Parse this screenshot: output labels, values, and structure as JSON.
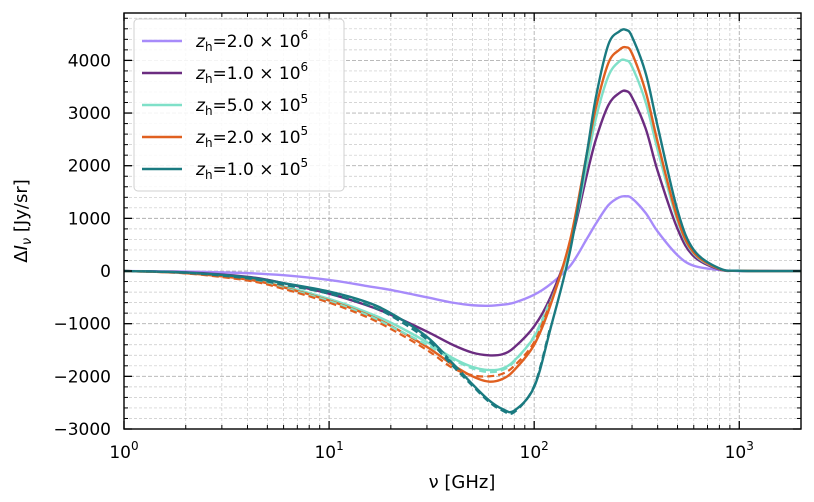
{
  "chart_data": {
    "type": "line",
    "xscale": "log",
    "xlim": [
      1,
      2000
    ],
    "ylim": [
      -3000,
      4900
    ],
    "xlabel": "ν [GHz]",
    "ylabel": "ΔI_ν [Jy/sr]",
    "grid": true,
    "legend_position": "top-left",
    "x_ticks": [
      {
        "value": 1,
        "base": "10",
        "exp": "0"
      },
      {
        "value": 10,
        "base": "10",
        "exp": "1"
      },
      {
        "value": 100,
        "base": "10",
        "exp": "2"
      },
      {
        "value": 1000,
        "base": "10",
        "exp": "3"
      }
    ],
    "y_ticks": [
      {
        "value": -3000,
        "label": "−3000"
      },
      {
        "value": -2000,
        "label": "−2000"
      },
      {
        "value": -1000,
        "label": "−1000"
      },
      {
        "value": 0,
        "label": "0"
      },
      {
        "value": 1000,
        "label": "1000"
      },
      {
        "value": 2000,
        "label": "2000"
      },
      {
        "value": 3000,
        "label": "3000"
      },
      {
        "value": 4000,
        "label": "4000"
      }
    ],
    "x": [
      1,
      2,
      4,
      6,
      10,
      15,
      20,
      30,
      40,
      50,
      60,
      70,
      80,
      100,
      120,
      150,
      180,
      200,
      230,
      260,
      280,
      300,
      350,
      400,
      500,
      600,
      800,
      1000,
      1500,
      2000
    ],
    "series": [
      {
        "name_prefix": "z",
        "name_sub": "h",
        "name_mid": "=2.0 × 10",
        "name_sup": "6",
        "color": "#a78bfa",
        "style": "solid",
        "values": [
          0,
          -10,
          -40,
          -80,
          -170,
          -280,
          -360,
          -500,
          -600,
          -650,
          -660,
          -640,
          -600,
          -450,
          -250,
          100,
          600,
          900,
          1250,
          1400,
          1420,
          1380,
          1100,
          750,
          300,
          100,
          20,
          0,
          0,
          0
        ]
      },
      {
        "name_prefix": "z",
        "name_sub": "h",
        "name_mid": "=1.0 × 10",
        "name_sup": "6",
        "color": "#6b2c80",
        "style": "solid",
        "values": [
          0,
          -25,
          -110,
          -230,
          -430,
          -640,
          -830,
          -1150,
          -1400,
          -1550,
          -1600,
          -1580,
          -1450,
          -1050,
          -500,
          500,
          1800,
          2500,
          3150,
          3380,
          3420,
          3300,
          2700,
          1900,
          800,
          280,
          30,
          5,
          0,
          0
        ]
      },
      {
        "name_prefix": "z",
        "name_sub": "h",
        "name_mid": "=5.0 × 10",
        "name_sup": "5",
        "color": "#7fe0c8",
        "style": "solid",
        "values": [
          0,
          -35,
          -150,
          -290,
          -530,
          -770,
          -980,
          -1350,
          -1650,
          -1820,
          -1880,
          -1850,
          -1700,
          -1250,
          -600,
          500,
          2000,
          2900,
          3700,
          3980,
          4000,
          3880,
          3200,
          2300,
          950,
          330,
          40,
          5,
          0,
          0
        ]
      },
      {
        "name_prefix": "z",
        "name_sub": "h",
        "name_mid": "=2.0 × 10",
        "name_sup": "5",
        "color": "#e06020",
        "style": "solid",
        "values": [
          0,
          -40,
          -160,
          -310,
          -560,
          -810,
          -1040,
          -1440,
          -1780,
          -2000,
          -2100,
          -2050,
          -1880,
          -1400,
          -650,
          600,
          2200,
          3100,
          3950,
          4200,
          4250,
          4130,
          3400,
          2450,
          1000,
          350,
          40,
          5,
          0,
          0
        ]
      },
      {
        "name_prefix": "z",
        "name_sub": "h",
        "name_mid": "=1.0 × 10",
        "name_sup": "5",
        "color": "#1a7a80",
        "style": "solid",
        "values": [
          0,
          -30,
          -120,
          -230,
          -390,
          -580,
          -800,
          -1250,
          -1750,
          -2150,
          -2450,
          -2620,
          -2650,
          -2200,
          -1100,
          400,
          2200,
          3300,
          4300,
          4550,
          4580,
          4450,
          3750,
          2750,
          1150,
          400,
          50,
          5,
          0,
          0
        ]
      }
    ],
    "dashed_series": [
      {
        "color": "#7fe0c8",
        "values": [
          0,
          -40,
          -165,
          -320,
          -570,
          -820,
          -1050,
          -1400,
          -1680,
          -1850,
          -1920,
          -1880,
          -1720,
          -1230,
          -550
        ]
      },
      {
        "color": "#e06020",
        "values": [
          0,
          -45,
          -180,
          -340,
          -600,
          -860,
          -1100,
          -1500,
          -1840,
          -1980,
          -2000,
          -1950,
          -1800,
          -1350,
          -600
        ]
      },
      {
        "color": "#1a7a80",
        "values": [
          0,
          -35,
          -140,
          -260,
          -430,
          -630,
          -850,
          -1300,
          -1800,
          -2180,
          -2480,
          -2650,
          -2680,
          -2180,
          -1050
        ]
      }
    ]
  }
}
